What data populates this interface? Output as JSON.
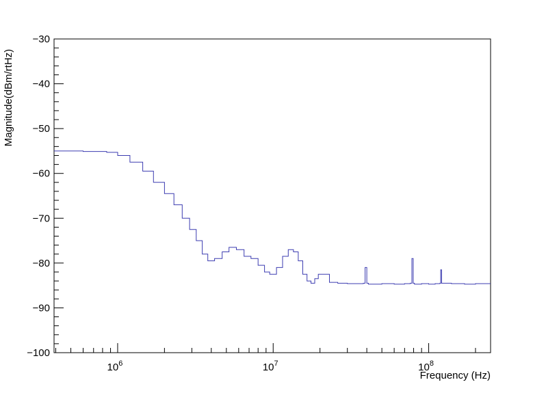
{
  "chart_data": {
    "type": "line",
    "title": "",
    "xlabel": "Frequency (Hz)",
    "ylabel": "Magnitude(dBm/rtHz)",
    "xscale": "log",
    "xlim": [
      390000,
      250000000
    ],
    "ylim": [
      -100,
      -30
    ],
    "grid": false,
    "legend": "none",
    "x_tick_labels": [
      {
        "value": 1000000,
        "base": "10",
        "exp": "6"
      },
      {
        "value": 10000000,
        "base": "10",
        "exp": "7"
      },
      {
        "value": 100000000,
        "base": "10",
        "exp": "8"
      }
    ],
    "y_ticks": [
      -30,
      -40,
      -50,
      -60,
      -70,
      -80,
      -90,
      -100
    ],
    "y_tick_labels": [
      "−30",
      "−40",
      "−50",
      "−60",
      "−70",
      "−80",
      "−90",
      "−100"
    ],
    "series_color": "#3b3bb0",
    "series": [
      {
        "x": [
          390000,
          600000,
          850000,
          1000000,
          1200000,
          1450000,
          1700000,
          2000000,
          2300000,
          2600000,
          2900000,
          3200000,
          3500000,
          3800000,
          4200000,
          4700000,
          5200000,
          5800000,
          6500000,
          7200000,
          8000000,
          8800000,
          9500000,
          10500000,
          11500000,
          12500000,
          13500000,
          14500000,
          15500000,
          16500000,
          17500000,
          18500000,
          19500000,
          21000000,
          23000000,
          26000000,
          30000000,
          35000000,
          38000000,
          39000000,
          40000000,
          41000000,
          50000000,
          60000000,
          70000000,
          76000000,
          78000000,
          79500000,
          81000000,
          90000000,
          100000000,
          110000000,
          118000000,
          119500000,
          121000000,
          140000000,
          170000000,
          200000000,
          250000000
        ],
        "y": [
          -55.0,
          -55.1,
          -55.3,
          -56.0,
          -57.5,
          -59.5,
          -62.0,
          -64.5,
          -67.0,
          -70.0,
          -72.5,
          -75.0,
          -78.0,
          -79.5,
          -79.0,
          -77.5,
          -76.5,
          -77.0,
          -78.5,
          -79.0,
          -80.5,
          -82.0,
          -82.5,
          -81.0,
          -78.5,
          -77.0,
          -77.5,
          -79.5,
          -82.5,
          -84.0,
          -84.5,
          -83.5,
          -82.5,
          -82.5,
          -84.3,
          -84.5,
          -84.6,
          -84.6,
          -84.5,
          -81.0,
          -84.5,
          -84.7,
          -84.6,
          -84.7,
          -84.6,
          -84.5,
          -79.0,
          -84.5,
          -84.7,
          -84.6,
          -84.7,
          -84.6,
          -84.5,
          -81.5,
          -84.5,
          -84.6,
          -84.7,
          -84.6,
          -84.6
        ]
      }
    ]
  }
}
